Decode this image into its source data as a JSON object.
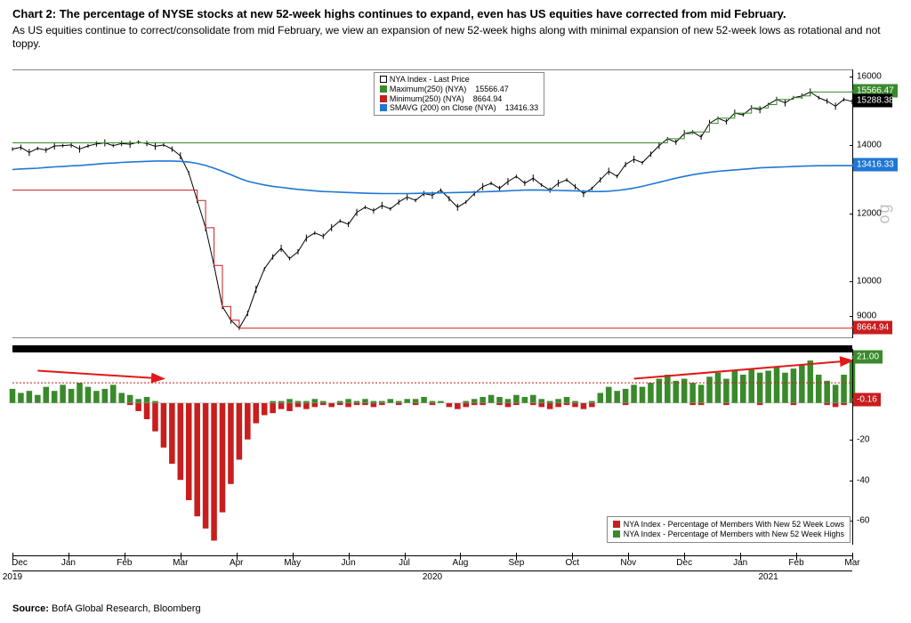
{
  "header": {
    "title": "Chart 2: The percentage of NYSE stocks at new 52-week highs continues to expand, even has US equities have corrected from mid February.",
    "subtitle": "As US equities continue to correct/consolidate from mid February, we view an expansion of new 52-week highs along with minimal expansion of new 52-week lows as rotational and not toppy."
  },
  "source": {
    "label": "Source:",
    "text": "BofA Global Research, Bloomberg"
  },
  "legend_top": {
    "rows": [
      {
        "swatch_fill": "#ffffff",
        "swatch_border": "#000000",
        "label": "NYA Index - Last Price",
        "value": ""
      },
      {
        "swatch_fill": "#3a8a2b",
        "swatch_border": "#3a8a2b",
        "label": "Maximum(250) (NYA)",
        "value": "15566.47"
      },
      {
        "swatch_fill": "#c81e1e",
        "swatch_border": "#c81e1e",
        "label": "Minimum(250) (NYA)",
        "value": "8664.94"
      },
      {
        "swatch_fill": "#1f77d4",
        "swatch_border": "#1f77d4",
        "label": "SMAVG (200) on Close (NYA)",
        "value": "13416.33"
      }
    ]
  },
  "legend_bottom": {
    "rows": [
      {
        "swatch_fill": "#c81e1e",
        "label": "NYA Index - Percentage of Members With New 52 Week Lows"
      },
      {
        "swatch_fill": "#3a8a2b",
        "label": "NYA Index - Percentage of Members with New 52 Week Highs"
      }
    ]
  },
  "main_chart": {
    "type": "line+candlestick",
    "ylim": [
      8400,
      16200
    ],
    "yscale": "log",
    "yticks": [
      9000,
      10000,
      12000,
      14000,
      16000
    ],
    "yaxis_side_label": "og",
    "flags": [
      {
        "value": 15566.47,
        "text": "15566.47",
        "color": "green"
      },
      {
        "value": 15288.38,
        "text": "15288.38",
        "color": "black"
      },
      {
        "value": 13416.33,
        "text": "13416.33",
        "color": "blue"
      },
      {
        "value": 8664.94,
        "text": "8664.94",
        "color": "red"
      }
    ],
    "series_price": [
      13900,
      13950,
      13800,
      13920,
      13870,
      13990,
      14000,
      14020,
      13900,
      13990,
      14050,
      14080,
      14000,
      14060,
      14040,
      14100,
      14060,
      13980,
      14020,
      13900,
      13700,
      13200,
      12400,
      11600,
      10500,
      9300,
      8900,
      8665,
      9100,
      9800,
      10400,
      10750,
      11000,
      10700,
      10900,
      11300,
      11450,
      11350,
      11600,
      11800,
      11700,
      12050,
      12200,
      12100,
      12250,
      12150,
      12350,
      12500,
      12400,
      12600,
      12550,
      12700,
      12450,
      12200,
      12350,
      12600,
      12800,
      12900,
      12750,
      12950,
      13100,
      12900,
      13050,
      12850,
      12700,
      12900,
      13000,
      12800,
      12600,
      12750,
      13000,
      13250,
      13100,
      13450,
      13600,
      13500,
      13750,
      14000,
      14200,
      14100,
      14350,
      14400,
      14250,
      14650,
      14800,
      14700,
      14950,
      14900,
      15100,
      15050,
      15200,
      15350,
      15250,
      15400,
      15450,
      15566,
      15400,
      15300,
      15150,
      15350,
      15288
    ],
    "series_max250": [
      14080,
      14080,
      14080,
      14080,
      14080,
      14080,
      14080,
      14080,
      14080,
      14080,
      14080,
      14080,
      14080,
      14080,
      14080,
      14080,
      14080,
      14080,
      14080,
      14080,
      14080,
      14080,
      14080,
      14080,
      14080,
      14080,
      14080,
      14080,
      14080,
      14080,
      14080,
      14080,
      14080,
      14080,
      14080,
      14080,
      14080,
      14080,
      14080,
      14080,
      14080,
      14080,
      14080,
      14080,
      14080,
      14080,
      14080,
      14080,
      14080,
      14080,
      14080,
      14080,
      14080,
      14080,
      14080,
      14080,
      14080,
      14080,
      14080,
      14080,
      14080,
      14080,
      14080,
      14080,
      14080,
      14080,
      14080,
      14080,
      14080,
      14080,
      14080,
      14080,
      14080,
      14080,
      14080,
      14080,
      14080,
      14080,
      14200,
      14200,
      14350,
      14400,
      14400,
      14650,
      14800,
      14800,
      14950,
      14950,
      15100,
      15100,
      15200,
      15350,
      15350,
      15400,
      15450,
      15566,
      15566,
      15566,
      15566,
      15566,
      15566
    ],
    "series_min250": [
      12700,
      12700,
      12700,
      12700,
      12700,
      12700,
      12700,
      12700,
      12700,
      12700,
      12700,
      12700,
      12700,
      12700,
      12700,
      12700,
      12700,
      12700,
      12700,
      12700,
      12700,
      12700,
      12400,
      11600,
      10500,
      9300,
      8900,
      8665,
      8665,
      8665,
      8665,
      8665,
      8665,
      8665,
      8665,
      8665,
      8665,
      8665,
      8665,
      8665,
      8665,
      8665,
      8665,
      8665,
      8665,
      8665,
      8665,
      8665,
      8665,
      8665,
      8665,
      8665,
      8665,
      8665,
      8665,
      8665,
      8665,
      8665,
      8665,
      8665,
      8665,
      8665,
      8665,
      8665,
      8665,
      8665,
      8665,
      8665,
      8665,
      8665,
      8665,
      8665,
      8665,
      8665,
      8665,
      8665,
      8665,
      8665,
      8665,
      8665,
      8665,
      8665,
      8665,
      8665,
      8665,
      8665,
      8665,
      8665,
      8665,
      8665,
      8665,
      8665,
      8665,
      8665,
      8665,
      8665,
      8665,
      8665,
      8665,
      8665,
      8665
    ],
    "series_sma200": [
      13300,
      13320,
      13330,
      13340,
      13360,
      13380,
      13390,
      13410,
      13420,
      13440,
      13460,
      13480,
      13490,
      13510,
      13520,
      13530,
      13540,
      13550,
      13550,
      13550,
      13540,
      13520,
      13480,
      13420,
      13340,
      13250,
      13150,
      13050,
      12960,
      12900,
      12850,
      12810,
      12780,
      12750,
      12720,
      12700,
      12680,
      12660,
      12650,
      12640,
      12630,
      12620,
      12610,
      12605,
      12600,
      12600,
      12600,
      12600,
      12605,
      12610,
      12615,
      12620,
      12625,
      12630,
      12635,
      12640,
      12650,
      12660,
      12670,
      12680,
      12690,
      12700,
      12705,
      12700,
      12695,
      12690,
      12685,
      12680,
      12670,
      12660,
      12660,
      12670,
      12690,
      12720,
      12760,
      12810,
      12870,
      12930,
      12990,
      13050,
      13100,
      13150,
      13190,
      13220,
      13250,
      13270,
      13290,
      13310,
      13330,
      13350,
      13360,
      13370,
      13380,
      13390,
      13400,
      13408,
      13412,
      13414,
      13415,
      13416,
      13416
    ],
    "colors": {
      "price": "#000000",
      "max250": "#3a8a2b",
      "min250": "#c81e1e",
      "sma200": "#1f77d4",
      "background": "#ffffff"
    },
    "line_widths": {
      "price": 1,
      "max250": 1,
      "min250": 1,
      "sma200": 1.6
    }
  },
  "lower_chart": {
    "type": "bar-histogram",
    "ylim": [
      -70,
      25
    ],
    "yticks": [
      -60,
      -40,
      -20
    ],
    "zero": 0,
    "bar_highs": [
      7,
      5,
      6,
      4,
      8,
      6,
      9,
      7,
      10,
      8,
      6,
      7,
      9,
      5,
      4,
      2,
      3,
      1,
      0,
      0,
      0,
      0,
      0,
      0,
      0,
      0,
      0,
      0,
      0,
      0,
      0,
      1,
      1,
      2,
      1,
      1,
      2,
      1,
      0,
      1,
      2,
      1,
      2,
      1,
      1,
      2,
      1,
      2,
      2,
      3,
      1,
      1,
      0,
      0,
      1,
      2,
      3,
      4,
      3,
      2,
      4,
      3,
      4,
      2,
      1,
      2,
      3,
      1,
      0,
      1,
      5,
      8,
      6,
      7,
      9,
      8,
      10,
      12,
      14,
      11,
      12,
      10,
      9,
      13,
      15,
      12,
      16,
      14,
      17,
      15,
      16,
      18,
      15,
      17,
      19,
      21,
      14,
      11,
      9,
      14,
      21
    ],
    "bar_lows": [
      0,
      0,
      0,
      0,
      0,
      0,
      0,
      0,
      0,
      0,
      0,
      0,
      0,
      0,
      -1,
      -4,
      -8,
      -14,
      -22,
      -30,
      -38,
      -48,
      -56,
      -62,
      -68,
      -54,
      -40,
      -28,
      -18,
      -10,
      -6,
      -5,
      -3,
      -4,
      -2,
      -3,
      -2,
      -1,
      -2,
      -1,
      -2,
      -1,
      -1,
      -2,
      -1,
      0,
      -1,
      0,
      -1,
      0,
      -1,
      0,
      -2,
      -3,
      -2,
      -1,
      -1,
      0,
      -1,
      -2,
      -1,
      0,
      -1,
      -2,
      -3,
      -2,
      -1,
      -2,
      -3,
      -2,
      0,
      0,
      0,
      -1,
      0,
      0,
      0,
      0,
      0,
      0,
      0,
      -1,
      -1,
      0,
      0,
      -1,
      0,
      0,
      0,
      -1,
      0,
      0,
      0,
      -1,
      0,
      0,
      0,
      -1,
      -2,
      -1,
      0
    ],
    "colors": {
      "highs": "#3a8a2b",
      "lows": "#c81e1e"
    },
    "ref_lines": [
      {
        "value": 10,
        "style": "dotted-red"
      }
    ],
    "flags": [
      {
        "value": 21.0,
        "text": "21.00",
        "color": "green"
      },
      {
        "value": -0.16,
        "text": "-0.16",
        "color": "red"
      }
    ],
    "arrows": [
      {
        "from_idx": 3,
        "from_val": 16,
        "to_idx": 18,
        "to_val": 12
      },
      {
        "from_idx": 74,
        "from_val": 12,
        "to_idx": 100,
        "to_val": 21
      }
    ]
  },
  "xaxis": {
    "labels": [
      "Dec",
      "Jan",
      "Feb",
      "Mar",
      "Apr",
      "May",
      "Jun",
      "Jul",
      "Aug",
      "Sep",
      "Oct",
      "Nov",
      "Dec",
      "Jan",
      "Feb",
      "Mar"
    ],
    "years": [
      {
        "label": "2019",
        "at": 0
      },
      {
        "label": "2020",
        "at": 7.5
      },
      {
        "label": "2021",
        "at": 13.5
      }
    ],
    "n_points": 101
  }
}
